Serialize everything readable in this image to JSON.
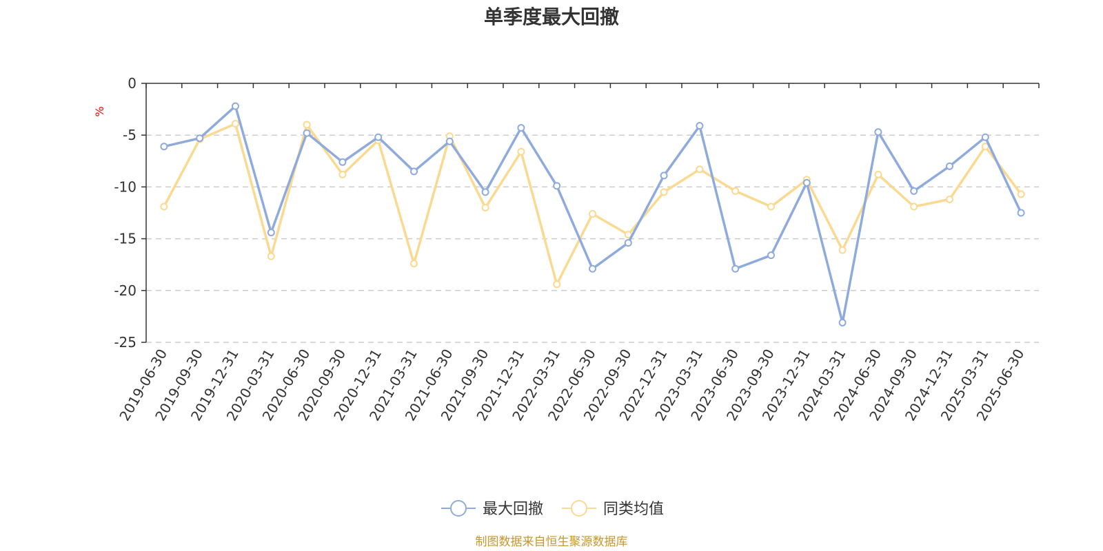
{
  "chart_data": {
    "type": "line",
    "title": "单季度最大回撤",
    "y_unit_label": "%",
    "ylim": [
      -25,
      0
    ],
    "y_ticks": [
      0,
      -5,
      -10,
      -15,
      -20,
      -25
    ],
    "grid": "horizontal dashed",
    "legend_position": "bottom-center",
    "categories": [
      "2019-06-30",
      "2019-09-30",
      "2019-12-31",
      "2020-03-31",
      "2020-06-30",
      "2020-09-30",
      "2020-12-31",
      "2021-03-31",
      "2021-06-30",
      "2021-09-30",
      "2021-12-31",
      "2022-03-31",
      "2022-06-30",
      "2022-09-30",
      "2022-12-31",
      "2023-03-31",
      "2023-06-30",
      "2023-09-30",
      "2023-12-31",
      "2024-03-31",
      "2024-06-30",
      "2024-09-30",
      "2024-12-31",
      "2025-03-31",
      "2025-06-30"
    ],
    "series": [
      {
        "name": "最大回撤",
        "color": "#8faadc",
        "values": [
          -6.1,
          -5.3,
          -2.2,
          -14.4,
          -4.8,
          -7.6,
          -5.2,
          -8.5,
          -5.6,
          -10.5,
          -4.3,
          -9.9,
          -17.9,
          -15.4,
          -8.9,
          -4.1,
          -17.9,
          -16.6,
          -9.6,
          -23.1,
          -4.7,
          -10.4,
          -8.0,
          -5.2,
          -12.5
        ]
      },
      {
        "name": "同类均值",
        "color": "#fad990",
        "values": [
          -11.9,
          -5.4,
          -3.9,
          -16.7,
          -4.0,
          -8.8,
          -5.5,
          -17.4,
          -5.1,
          -12.0,
          -6.6,
          -19.4,
          -12.6,
          -14.6,
          -10.5,
          -8.3,
          -10.4,
          -11.9,
          -9.3,
          -16.1,
          -8.8,
          -11.9,
          -11.2,
          -6.1,
          -10.7
        ]
      }
    ]
  },
  "footer": {
    "source": "制图数据来自恒生聚源数据库"
  }
}
